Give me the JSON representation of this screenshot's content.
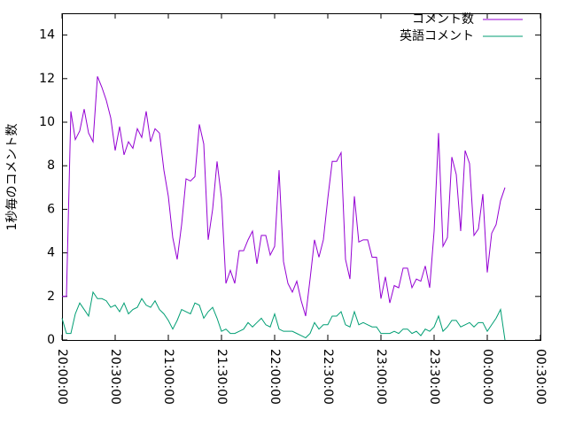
{
  "chart_data": {
    "type": "line",
    "ylabel": "1秒毎のコメント数",
    "x": [
      "20:00:00",
      "20:02:30",
      "20:05:00",
      "20:07:30",
      "20:10:00",
      "20:12:30",
      "20:15:00",
      "20:17:30",
      "20:20:00",
      "20:22:30",
      "20:25:00",
      "20:27:30",
      "20:30:00",
      "20:32:30",
      "20:35:00",
      "20:37:30",
      "20:40:00",
      "20:42:30",
      "20:45:00",
      "20:47:30",
      "20:50:00",
      "20:52:30",
      "20:55:00",
      "20:57:30",
      "21:00:00",
      "21:02:30",
      "21:05:00",
      "21:07:30",
      "21:10:00",
      "21:12:30",
      "21:15:00",
      "21:17:30",
      "21:20:00",
      "21:22:30",
      "21:25:00",
      "21:27:30",
      "21:30:00",
      "21:32:30",
      "21:35:00",
      "21:37:30",
      "21:40:00",
      "21:42:30",
      "21:45:00",
      "21:47:30",
      "21:50:00",
      "21:52:30",
      "21:55:00",
      "21:57:30",
      "22:00:00",
      "22:02:30",
      "22:05:00",
      "22:07:30",
      "22:10:00",
      "22:12:30",
      "22:15:00",
      "22:17:30",
      "22:20:00",
      "22:22:30",
      "22:25:00",
      "22:27:30",
      "22:30:00",
      "22:32:30",
      "22:35:00",
      "22:37:30",
      "22:40:00",
      "22:42:30",
      "22:45:00",
      "22:47:30",
      "22:50:00",
      "22:52:30",
      "22:55:00",
      "22:57:30",
      "23:00:00",
      "23:02:30",
      "23:05:00",
      "23:07:30",
      "23:10:00",
      "23:12:30",
      "23:15:00",
      "23:17:30",
      "23:20:00",
      "23:22:30",
      "23:25:00",
      "23:27:30",
      "23:30:00",
      "23:32:30",
      "23:35:00",
      "23:37:30",
      "23:40:00",
      "23:42:30",
      "23:45:00",
      "23:47:30",
      "23:50:00",
      "23:52:30",
      "23:55:00",
      "23:57:30",
      "00:00:00",
      "00:02:30",
      "00:05:00",
      "00:07:30",
      "00:10:00"
    ],
    "series": [
      {
        "name": "コメント数",
        "color": "#9400d3",
        "values": [
          2.0,
          2.0,
          10.5,
          9.2,
          9.6,
          10.6,
          9.5,
          9.1,
          12.1,
          11.6,
          11,
          10.2,
          8.7,
          9.8,
          8.5,
          9.1,
          8.8,
          9.7,
          9.3,
          10.5,
          9.1,
          9.7,
          9.5,
          7.8,
          6.6,
          4.7,
          3.7,
          5.3,
          7.4,
          7.3,
          7.5,
          9.9,
          9.0,
          4.6,
          6.0,
          8.2,
          6.5,
          2.6,
          3.2,
          2.6,
          4.1,
          4.1,
          4.6,
          5.0,
          3.5,
          4.8,
          4.8,
          3.9,
          4.3,
          7.8,
          3.6,
          2.6,
          2.2,
          2.7,
          1.8,
          1.1,
          2.8,
          4.6,
          3.8,
          4.6,
          6.5,
          8.2,
          8.2,
          8.6,
          3.7,
          2.8,
          6.6,
          4.5,
          4.6,
          4.6,
          3.8,
          3.8,
          1.9,
          2.9,
          1.7,
          2.5,
          2.4,
          3.3,
          3.3,
          2.4,
          2.8,
          2.7,
          3.4,
          2.4,
          5.0,
          9.5,
          4.3,
          4.7,
          8.4,
          7.6,
          5.0,
          8.7,
          8.1,
          4.8,
          5.1,
          6.7,
          3.1,
          4.9,
          5.3,
          6.4,
          7.0
        ]
      },
      {
        "name": "英語コメント",
        "color": "#009e73",
        "values": [
          1.0,
          0.3,
          0.3,
          1.2,
          1.7,
          1.4,
          1.1,
          2.2,
          1.9,
          1.9,
          1.8,
          1.5,
          1.6,
          1.3,
          1.7,
          1.2,
          1.4,
          1.5,
          1.9,
          1.6,
          1.5,
          1.8,
          1.4,
          1.2,
          0.9,
          0.5,
          0.9,
          1.4,
          1.3,
          1.2,
          1.7,
          1.6,
          1.0,
          1.3,
          1.5,
          1.0,
          0.4,
          0.5,
          0.3,
          0.3,
          0.4,
          0.5,
          0.8,
          0.6,
          0.8,
          1.0,
          0.7,
          0.6,
          1.2,
          0.5,
          0.4,
          0.4,
          0.4,
          0.3,
          0.2,
          0.1,
          0.3,
          0.8,
          0.5,
          0.7,
          0.7,
          1.1,
          1.1,
          1.3,
          0.7,
          0.6,
          1.3,
          0.7,
          0.8,
          0.7,
          0.6,
          0.6,
          0.3,
          0.3,
          0.3,
          0.4,
          0.3,
          0.5,
          0.5,
          0.3,
          0.4,
          0.2,
          0.5,
          0.4,
          0.6,
          1.1,
          0.4,
          0.6,
          0.9,
          0.9,
          0.6,
          0.7,
          0.8,
          0.6,
          0.8,
          0.8,
          0.4,
          0.7,
          1.0,
          1.4,
          0.0
        ]
      }
    ],
    "xlim": [
      "20:00:00",
      "00:30:00"
    ],
    "xticks": [
      "20:00:00",
      "20:30:00",
      "21:00:00",
      "21:30:00",
      "22:00:00",
      "22:30:00",
      "23:00:00",
      "23:30:00",
      "00:00:00",
      "00:30:00"
    ],
    "ylim": [
      0,
      15
    ],
    "yticks": [
      0,
      2,
      4,
      6,
      8,
      10,
      12,
      14
    ],
    "grid": false,
    "legend": "top-right"
  }
}
